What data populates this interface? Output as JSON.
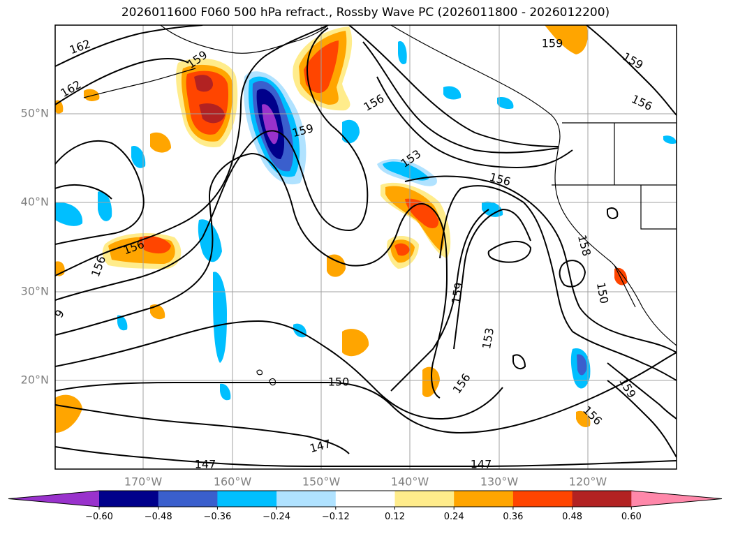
{
  "title": "2026011600 F060 500 hPa refract., Rossby Wave PC (2026011800 - 2026012200)",
  "lat_labels": [
    "50°N",
    "40°N",
    "30°N",
    "20°N"
  ],
  "lon_labels": [
    "170°W",
    "160°W",
    "150°W",
    "140°W",
    "130°W",
    "120°W"
  ],
  "contour_labels": [
    {
      "text": "162",
      "angle": -20
    },
    {
      "text": "162",
      "angle": -30
    },
    {
      "text": "159",
      "angle": -35
    },
    {
      "text": "159",
      "angle": -15
    },
    {
      "text": "159",
      "angle": 0
    },
    {
      "text": "159",
      "angle": 30
    },
    {
      "text": "156",
      "angle": 25
    },
    {
      "text": "156",
      "angle": -30
    },
    {
      "text": "153",
      "angle": -35
    },
    {
      "text": "156",
      "angle": 15
    },
    {
      "text": "156",
      "angle": -20
    },
    {
      "text": "156",
      "angle": -70
    },
    {
      "text": "158",
      "angle": 75
    },
    {
      "text": "150",
      "angle": 80
    },
    {
      "text": "159",
      "angle": -80
    },
    {
      "text": "153",
      "angle": -80
    },
    {
      "text": "156",
      "angle": -55
    },
    {
      "text": "150",
      "angle": 0
    },
    {
      "text": "147",
      "angle": -15
    },
    {
      "text": "147",
      "angle": 0
    },
    {
      "text": "147",
      "angle": 0
    },
    {
      "text": "159",
      "angle": 60
    },
    {
      "text": "156",
      "angle": 45
    },
    {
      "text": "9",
      "angle": -60
    }
  ],
  "colorbar": {
    "colors": [
      "#9932CC",
      "#00008B",
      "#3A5FCD",
      "#00BFFF",
      "#B0E2FF",
      "#FFFFFF",
      "#FFEC8B",
      "#FFA500",
      "#FF4500",
      "#B22222",
      "#FF88AA"
    ],
    "ticks": [
      "−0.60",
      "−0.48",
      "−0.36",
      "−0.24",
      "−0.12",
      "0.12",
      "0.24",
      "0.36",
      "0.48",
      "0.60"
    ]
  }
}
